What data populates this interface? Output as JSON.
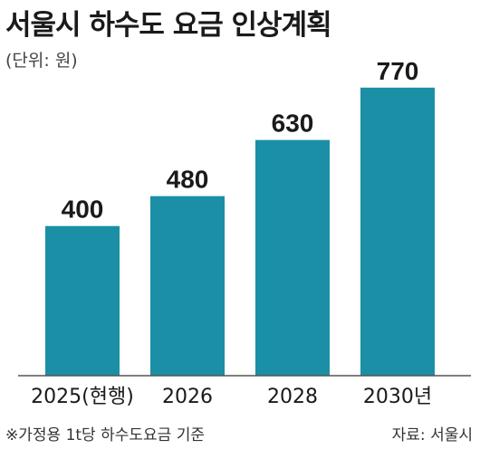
{
  "title": "서울시 하수도 요금 인상계획",
  "unit": "(단위: 원)",
  "footnote": "※가정용 1t당 하수도요금 기준",
  "source": "자료: 서울시",
  "colors": {
    "bar": "#1a8fa6",
    "axis": "#555555",
    "text": "#1a1a1a"
  },
  "chart_data": {
    "type": "bar",
    "title": "서울시 하수도 요금 인상계획",
    "categories": [
      "2025(현행)",
      "2026",
      "2028",
      "2030년"
    ],
    "values": [
      400,
      480,
      630,
      770
    ],
    "ylabel": "",
    "xlabel": "",
    "ylim": [
      0,
      830
    ],
    "grid": false,
    "legend": "none"
  }
}
